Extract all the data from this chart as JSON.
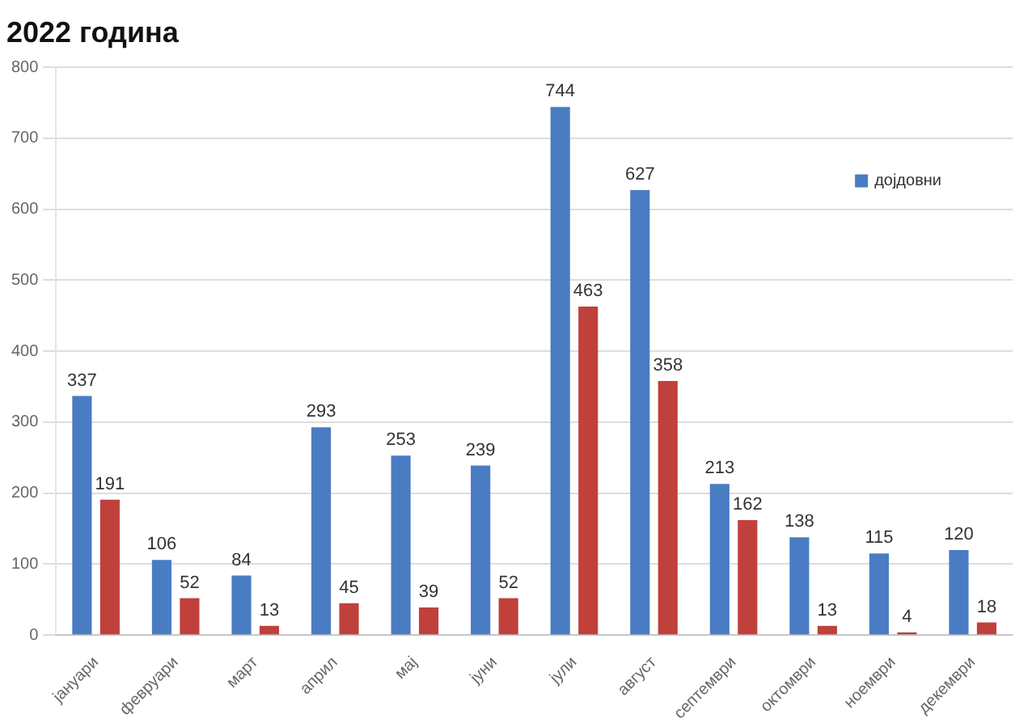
{
  "chart_data": {
    "type": "bar",
    "title": "2022 година",
    "categories": [
      "јануари",
      "февруари",
      "март",
      "април",
      "мај",
      "јуни",
      "јули",
      "август",
      "септември",
      "октомври",
      "ноември",
      "декември"
    ],
    "series": [
      {
        "name": "дојдовни",
        "color": "#4a7cc4",
        "values": [
          337,
          106,
          84,
          293,
          253,
          239,
          744,
          627,
          213,
          138,
          115,
          120
        ]
      },
      {
        "color": "#c0403c",
        "values": [
          191,
          52,
          13,
          45,
          39,
          52,
          463,
          358,
          162,
          13,
          4,
          18
        ]
      }
    ],
    "ylim": [
      0,
      800
    ],
    "yticks": [
      0,
      100,
      200,
      300,
      400,
      500,
      600,
      700,
      800
    ],
    "grid": "y",
    "legend": "top right",
    "data_labels": true
  }
}
